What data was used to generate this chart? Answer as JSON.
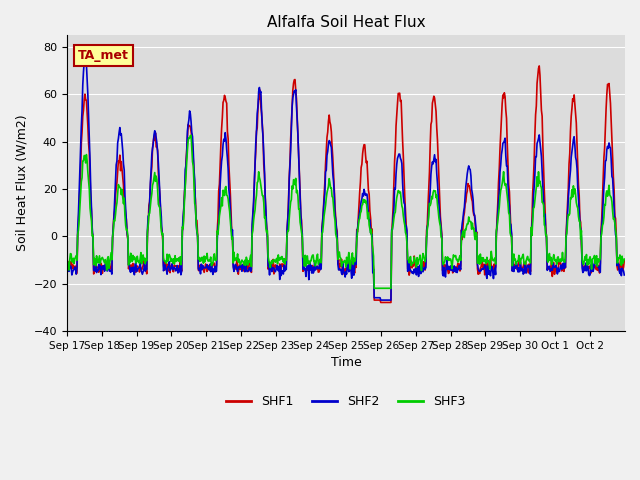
{
  "title": "Alfalfa Soil Heat Flux",
  "xlabel": "Time",
  "ylabel": "Soil Heat Flux (W/m2)",
  "ylim": [
    -40,
    85
  ],
  "yticks": [
    -40,
    -20,
    0,
    20,
    40,
    60,
    80
  ],
  "date_labels": [
    "Sep 17",
    "Sep 18",
    "Sep 19",
    "Sep 20",
    "Sep 21",
    "Sep 22",
    "Sep 23",
    "Sep 24",
    "Sep 25",
    "Sep 26",
    "Sep 27",
    "Sep 28",
    "Sep 29",
    "Sep 30",
    "Oct 1",
    "Oct 2"
  ],
  "annotation_text": "TA_met",
  "annotation_box_color": "#FFFF99",
  "annotation_border_color": "#AA0000",
  "shf1_color": "#CC0000",
  "shf2_color": "#0000CC",
  "shf3_color": "#00CC00",
  "line_width": 1.2,
  "plot_bg_color": "#DCDCDC",
  "legend_labels": [
    "SHF1",
    "SHF2",
    "SHF3"
  ],
  "shf1_amps": [
    60,
    32,
    42,
    48,
    60,
    60,
    65,
    49,
    38,
    62,
    60,
    21,
    60,
    70,
    59,
    65
  ],
  "shf2_amps": [
    75,
    45,
    43,
    52,
    42,
    62,
    62,
    40,
    20,
    35,
    33,
    29,
    41,
    41,
    40,
    40
  ],
  "shf3_amps": [
    35,
    21,
    25,
    42,
    20,
    25,
    23,
    22,
    15,
    18,
    20,
    6,
    25,
    25,
    20,
    20
  ],
  "shf1_night": -13,
  "shf2_night": -14,
  "shf3_night": -10
}
